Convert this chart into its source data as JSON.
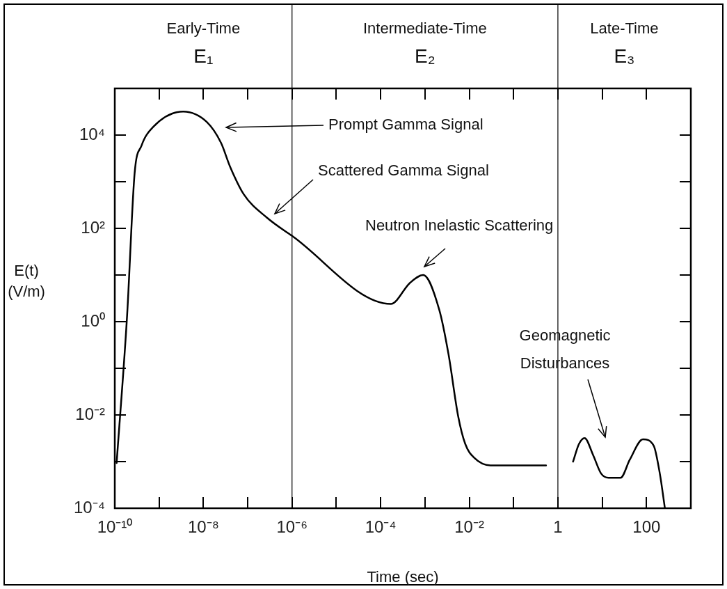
{
  "chart_data": {
    "type": "line",
    "xlabel": "Time (sec)",
    "ylabel": "E(t) (V/m)",
    "log": "xy",
    "grid": false,
    "legend": false,
    "marker": "none",
    "line_style": "solid",
    "xlim": [
      1e-10,
      1000
    ],
    "ylim": [
      0.0001,
      100000
    ],
    "xticks": [
      {
        "value": 1e-10,
        "label": "10⁻¹⁰"
      },
      {
        "value": 1e-09,
        "label": null
      },
      {
        "value": 1e-08,
        "label": "10⁻⁸"
      },
      {
        "value": 1e-07,
        "label": null
      },
      {
        "value": 1e-06,
        "label": "10⁻⁶"
      },
      {
        "value": 1e-05,
        "label": null
      },
      {
        "value": 0.0001,
        "label": "10⁻⁴"
      },
      {
        "value": 0.001,
        "label": null
      },
      {
        "value": 0.01,
        "label": "10⁻²"
      },
      {
        "value": 0.1,
        "label": null
      },
      1,
      {
        "value": 10,
        "label": null
      },
      100
    ],
    "yticks": [
      {
        "value": 0.0001,
        "label": "10⁻⁴"
      },
      {
        "value": 0.001,
        "label": null
      },
      {
        "value": 0.01,
        "label": "10⁻²"
      },
      {
        "value": 0.1,
        "label": null
      },
      {
        "value": 1,
        "label": "10⁰"
      },
      {
        "value": 10,
        "label": null
      },
      {
        "value": 100,
        "label": "10²"
      },
      {
        "value": 1000,
        "label": null
      },
      {
        "value": 10000,
        "label": "10⁴"
      }
    ],
    "ref_lines": [
      {
        "axis": "x",
        "value": 1e-06,
        "color": "#000000"
      },
      {
        "axis": "x",
        "value": 1,
        "color": "#000000"
      }
    ],
    "annotations": [
      "Early-Time E₁",
      "Intermediate-Time E₂",
      "Late-Time E₃",
      "Prompt Gamma Signal",
      "Scattered Gamma Signal",
      "Neutron Inelastic Scattering",
      "Geomagnetic Disturbances"
    ],
    "series": [
      {
        "color": "#000000",
        "x": [
          1.1e-10,
          1.9e-10,
          2.8e-10,
          4e-10,
          7.4e-10,
          3.5e-09,
          1.2e-08,
          2.5e-08,
          4e-08,
          8.1e-08,
          2.7e-07,
          1e-06,
          0.00017,
          0.00046,
          0.00091,
          0.0021,
          0.0034,
          0.0056,
          0.0081,
          0.013,
          0.03,
          0.54,
          1,
          2.2,
          3.0,
          4.0,
          6.2,
          9.5,
          14,
          26,
          42,
          83,
          145,
          200,
          260
        ],
        "values": [
          0.00093,
          1.4,
          1500,
          5900,
          15000,
          32000,
          19000,
          6800,
          2100,
          540,
          170,
          69,
          2.4,
          6.8,
          10,
          1.8,
          0.2,
          0.0095,
          0.0024,
          0.0012,
          0.00083,
          0.00083,
          null,
          0.001,
          0.0024,
          0.0032,
          0.0014,
          0.00055,
          0.00045,
          0.00045,
          0.0011,
          0.003,
          0.0022,
          0.00055,
          0.0001
        ]
      }
    ]
  }
}
